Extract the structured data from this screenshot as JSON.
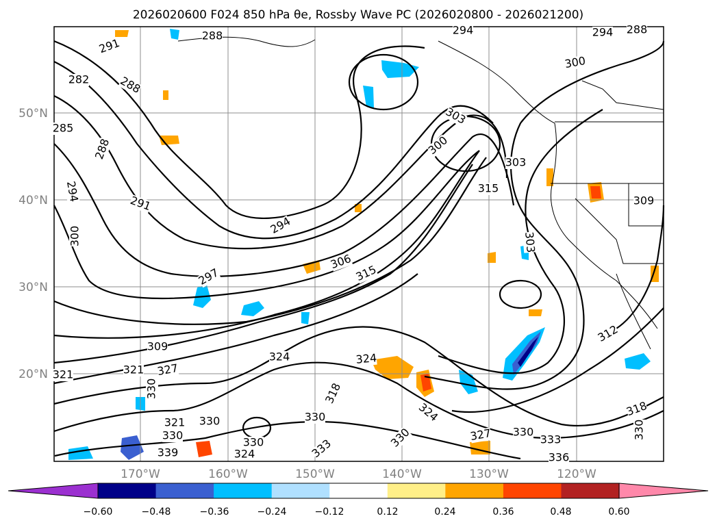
{
  "title": "2026020600 F024 850 hPa θe, Rossby Wave PC (2026020800 - 2026021200)",
  "map": {
    "lon_labels": [
      "170°W",
      "160°W",
      "150°W",
      "140°W",
      "130°W",
      "120°W"
    ],
    "lat_labels": [
      "50°N",
      "40°N",
      "30°N",
      "20°N"
    ]
  },
  "contour_labels": [
    "291",
    "288",
    "282",
    "288",
    "285",
    "288",
    "294",
    "291",
    "300",
    "294",
    "297",
    "306",
    "315",
    "309",
    "324",
    "327",
    "321",
    "324",
    "330",
    "321",
    "330",
    "330",
    "339",
    "330",
    "324",
    "333",
    "330",
    "330",
    "318",
    "324",
    "327",
    "330",
    "333",
    "336",
    "300",
    "303",
    "300",
    "303",
    "315",
    "303",
    "309",
    "312",
    "318",
    "330",
    "321",
    "294",
    "294",
    "288"
  ],
  "colorbar": {
    "ticks": [
      "−0.60",
      "−0.48",
      "−0.36",
      "−0.24",
      "−0.12",
      "0.12",
      "0.24",
      "0.36",
      "0.48",
      "0.60"
    ],
    "colors": {
      "under": "#9b30d0",
      "bins": [
        "#000088",
        "#3a5fd0",
        "#00bfff",
        "#b0e0ff",
        "#ffffff",
        "#ffef88",
        "#ffa500",
        "#ff4500",
        "#b22222"
      ],
      "over": "#ff88aa"
    }
  }
}
